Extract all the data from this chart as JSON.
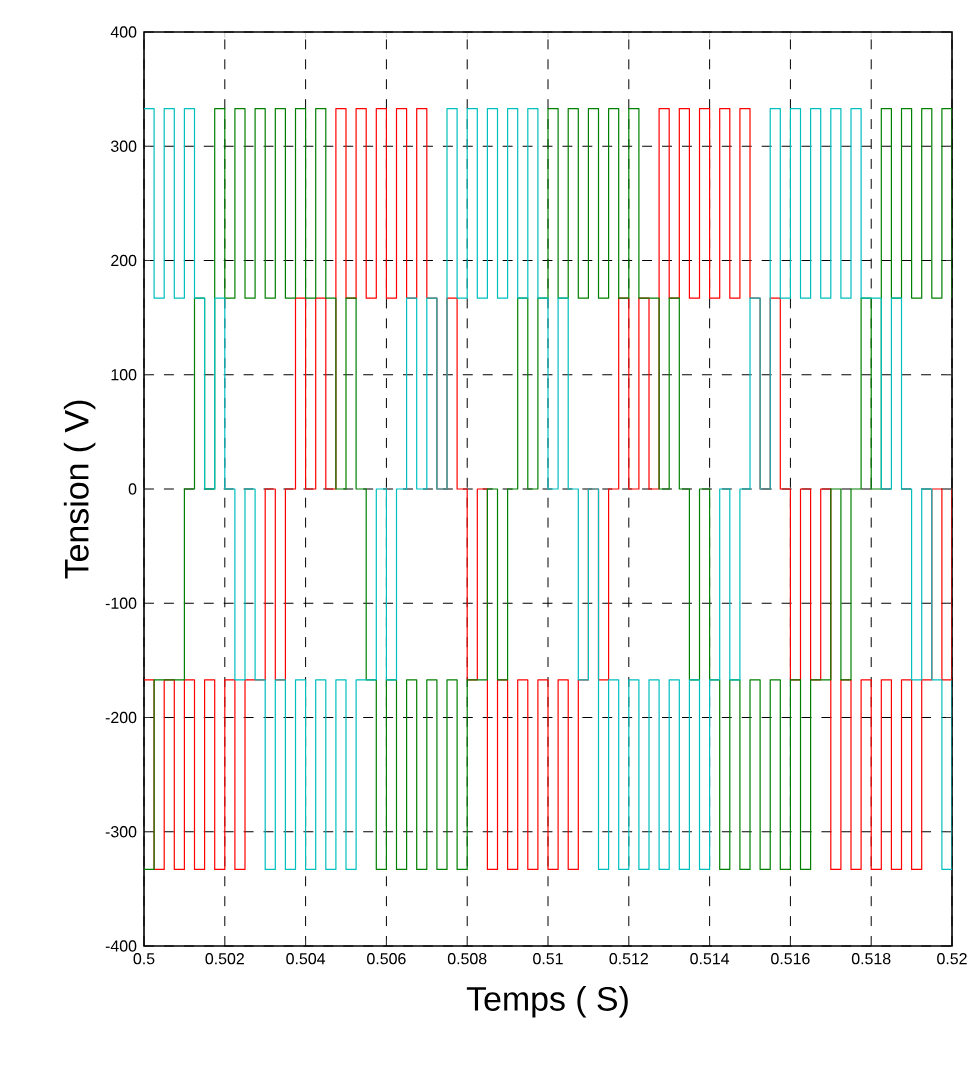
{
  "chart_data": {
    "type": "step",
    "xlabel": "Temps ( S)",
    "ylabel": "Tension ( V)",
    "xlim": [
      0.5,
      0.52
    ],
    "ylim": [
      -400,
      400
    ],
    "xticks": [
      0.5,
      0.502,
      0.504,
      0.506,
      0.508,
      0.51,
      0.512,
      0.514,
      0.516,
      0.518,
      0.52
    ],
    "yticks": [
      -400,
      -300,
      -200,
      -100,
      0,
      100,
      200,
      300,
      400
    ],
    "grid": true,
    "x": [
      0.5,
      0.50025,
      0.5005,
      0.50075,
      0.501,
      0.50125,
      0.5015,
      0.50175,
      0.502,
      0.50225,
      0.5025,
      0.50275,
      0.503,
      0.50325,
      0.5035,
      0.50375,
      0.504,
      0.50425,
      0.5045,
      0.50475,
      0.505,
      0.50525,
      0.5055,
      0.50575,
      0.506,
      0.50625,
      0.5065,
      0.50675,
      0.507,
      0.50725,
      0.5075,
      0.50775,
      0.508,
      0.50825,
      0.5085,
      0.50875,
      0.509,
      0.50925,
      0.5095,
      0.50975,
      0.51,
      0.51025,
      0.5105,
      0.51075,
      0.511,
      0.51125,
      0.5115,
      0.51175,
      0.512,
      0.51225,
      0.5125,
      0.51275,
      0.513,
      0.51325,
      0.5135,
      0.51375,
      0.514,
      0.51425,
      0.5145,
      0.51475,
      0.515,
      0.51525,
      0.5155,
      0.51575,
      0.516,
      0.51625,
      0.5165,
      0.51675,
      0.517,
      0.51725,
      0.5175,
      0.51775,
      0.518,
      0.51825,
      0.5185,
      0.51875,
      0.519,
      0.51925,
      0.5195,
      0.51975,
      0.52
    ],
    "series": [
      {
        "color": "#ff0000",
        "values": [
          -167,
          -333,
          -167,
          -333,
          -167,
          -333,
          -167,
          -333,
          -167,
          -333,
          -167,
          -167,
          0,
          -167,
          0,
          167,
          0,
          167,
          0,
          333,
          167,
          333,
          167,
          333,
          167,
          333,
          167,
          333,
          167,
          0,
          167,
          0,
          -167,
          0,
          -333,
          -167,
          -333,
          -167,
          -333,
          -167,
          -333,
          -167,
          -333,
          -167,
          0,
          -167,
          0,
          167,
          0,
          167,
          0,
          333,
          167,
          333,
          167,
          333,
          167,
          333,
          167,
          333,
          167,
          0,
          167,
          0,
          -167,
          0,
          -167,
          0,
          -333,
          -167,
          -333,
          -167,
          -333,
          -167,
          -333,
          -167,
          -333,
          -167,
          0,
          -167,
          0
        ]
      },
      {
        "color": "#008000",
        "values": [
          -333,
          -167,
          -167,
          -167,
          0,
          167,
          0,
          333,
          167,
          333,
          167,
          333,
          167,
          333,
          167,
          333,
          167,
          333,
          167,
          0,
          167,
          0,
          -167,
          -333,
          -167,
          -333,
          -167,
          -333,
          -167,
          -333,
          -167,
          -333,
          -167,
          -167,
          0,
          -167,
          0,
          167,
          0,
          167,
          333,
          167,
          333,
          167,
          333,
          167,
          333,
          167,
          333,
          167,
          167,
          0,
          167,
          0,
          -167,
          0,
          -167,
          -333,
          -167,
          -333,
          -167,
          -333,
          -167,
          -333,
          -167,
          -333,
          -167,
          -167,
          0,
          -167,
          0,
          167,
          0,
          333,
          167,
          333,
          167,
          333,
          167,
          333,
          167
        ]
      },
      {
        "color": "#00bfbf",
        "values": [
          333,
          167,
          333,
          167,
          333,
          167,
          0,
          167,
          0,
          -167,
          0,
          -167,
          -333,
          -167,
          -333,
          -167,
          -333,
          -167,
          -333,
          -167,
          -333,
          -167,
          -167,
          0,
          -167,
          0,
          167,
          0,
          167,
          0,
          333,
          167,
          333,
          167,
          333,
          167,
          333,
          167,
          333,
          167,
          0,
          167,
          0,
          -167,
          0,
          -333,
          -167,
          -333,
          -167,
          -333,
          -167,
          -333,
          -167,
          -333,
          -167,
          -333,
          -167,
          0,
          -167,
          0,
          167,
          0,
          333,
          167,
          333,
          167,
          333,
          167,
          333,
          167,
          333,
          167,
          167,
          0,
          167,
          0,
          -167,
          0,
          -167,
          -333,
          -167
        ]
      }
    ]
  }
}
